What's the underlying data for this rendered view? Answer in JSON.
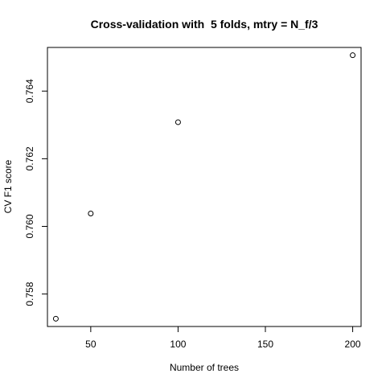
{
  "chart_data": {
    "type": "scatter",
    "title": "Cross-validation with  5 folds, mtry = N_f/3",
    "xlabel": "Number of trees",
    "ylabel": "CV F1 score",
    "x": [
      30,
      50,
      100,
      200
    ],
    "y": [
      0.75727,
      0.76038,
      0.76308,
      0.76506
    ],
    "xlim": [
      25.2,
      204.8
    ],
    "ylim": [
      0.75704,
      0.76529
    ],
    "xticks": [
      50,
      100,
      150,
      200
    ],
    "yticks": [
      0.758,
      0.76,
      0.762,
      0.764
    ],
    "ytick_labels": [
      "0.758",
      "0.760",
      "0.762",
      "0.764"
    ],
    "grid": false,
    "marker": "open-circle"
  }
}
